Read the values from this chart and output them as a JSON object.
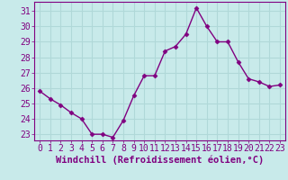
{
  "x": [
    0,
    1,
    2,
    3,
    4,
    5,
    6,
    7,
    8,
    9,
    10,
    11,
    12,
    13,
    14,
    15,
    16,
    17,
    18,
    19,
    20,
    21,
    22,
    23
  ],
  "y": [
    25.8,
    25.3,
    24.9,
    24.4,
    24.0,
    23.0,
    23.0,
    22.8,
    23.9,
    25.5,
    26.8,
    26.8,
    28.4,
    28.7,
    29.5,
    31.2,
    30.0,
    29.0,
    29.0,
    27.7,
    26.6,
    26.4,
    26.1,
    26.2
  ],
  "line_color": "#800080",
  "marker": "D",
  "marker_size": 2.5,
  "bg_color": "#c8eaea",
  "grid_color": "#b0d8d8",
  "xlabel": "Windchill (Refroidissement éolien,°C)",
  "xlabel_fontsize": 7.5,
  "ylabel_ticks": [
    23,
    24,
    25,
    26,
    27,
    28,
    29,
    30,
    31
  ],
  "xlim": [
    -0.5,
    23.5
  ],
  "ylim": [
    22.6,
    31.6
  ],
  "tick_fontsize": 7.0,
  "line_width": 1.0
}
